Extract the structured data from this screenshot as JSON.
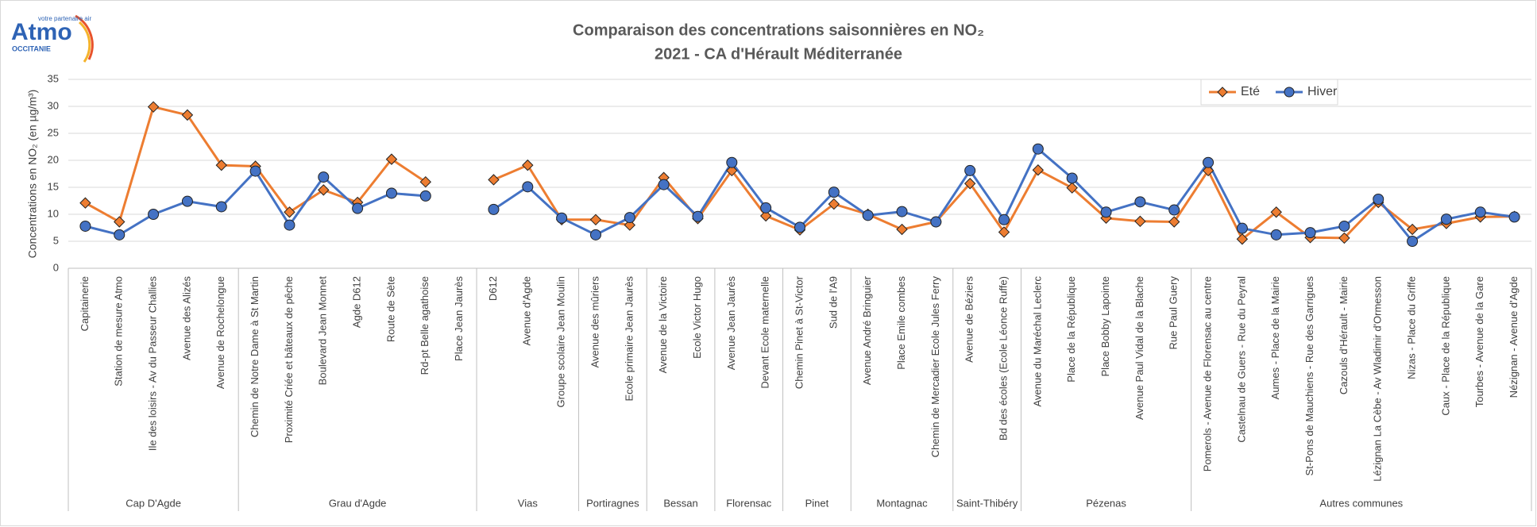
{
  "chart_data": {
    "type": "line",
    "title": "Comparaison des concentrations saisonnières en NO₂",
    "subtitle": "2021 - CA d'Hérault Méditerranée",
    "y_label": "Concentrations en NO₂ (en µg/m³)",
    "logo": {
      "name": "Atmo",
      "tagline": "votre partenaire air",
      "region": "OCCITANIE"
    },
    "groups": [
      {
        "name": "Cap D'Agde",
        "categories": [
          "Capitainerie",
          "Station de mesure Atmo",
          "Ile des loisirs - Av du Passeur Challies",
          "Avenue des Alizés",
          "Avenue de Rochelongue"
        ]
      },
      {
        "name": "Grau d'Agde",
        "categories": [
          "Chemin de Notre Dame à St Martin",
          "Proximité Criée et bâteaux de pêche",
          "Boulevard Jean Monnet",
          "Agde D612",
          "Route de Sète",
          "Rd-pt Belle agathoise",
          "Place Jean Jaurès"
        ]
      },
      {
        "name": "Vias",
        "categories": [
          "D612",
          "Avenue d'Agde",
          "Groupe scolaire Jean Moulin"
        ]
      },
      {
        "name": "Portiragnes",
        "categories": [
          "Avenue des mûriers",
          "Ecole primaire Jean Jaurès"
        ]
      },
      {
        "name": "Bessan",
        "categories": [
          "Avenue de la Victoire",
          "Ecole Victor Hugo"
        ]
      },
      {
        "name": "Florensac",
        "categories": [
          "Avenue Jean Jaurès",
          "Devant Ecole maternelle"
        ]
      },
      {
        "name": "Pinet",
        "categories": [
          "Chemin Pinet à St-Victor",
          "Sud de l'A9"
        ]
      },
      {
        "name": "Montagnac",
        "categories": [
          "Avenue André Bringuier",
          "Place Emile combes",
          "Chemin de Mercadier Ecole Jules Ferry"
        ]
      },
      {
        "name": "Saint-Thibéry",
        "categories": [
          "Avenue de Béziers",
          "Bd des écoles (Ecole Léonce Ruffe)"
        ]
      },
      {
        "name": "Pézenas",
        "categories": [
          "Avenue du Maréchal Leclerc",
          "Place de la République",
          "Place Bobby Lapointe",
          "Avenue Paul Vidal de la Blache",
          "Rue Paul Guery"
        ]
      },
      {
        "name": "Autres communes",
        "categories": [
          "Pomerols - Avenue de Florensac au centre",
          "Castelnau de Guers - Rue du Peyral",
          "Aumes - Place de la Mairie",
          "St-Pons de Mauchiens - Rue des Garrigues",
          "Cazouls d'Hérault - Mairie",
          "Lézignan La Cèbe - Av Wladimir d'Ormesson",
          "Nizas - Place du Griffe",
          "Caux - Place de la République",
          "Tourbes - Avenue de la Gare",
          "Nézignan - Avenue d'Agde"
        ]
      }
    ],
    "series": [
      {
        "name": "Eté",
        "color": "#ED7D31",
        "marker": "diamond",
        "values": [
          12.1,
          8.6,
          29.9,
          28.4,
          19.1,
          18.9,
          10.4,
          14.5,
          12.2,
          20.2,
          16.0,
          null,
          16.4,
          19.1,
          9.0,
          9.0,
          8.0,
          16.8,
          9.2,
          18.1,
          9.7,
          7.1,
          11.9,
          10.0,
          7.2,
          8.6,
          15.7,
          6.7,
          18.2,
          14.9,
          9.3,
          8.7,
          8.6,
          18.1,
          5.4,
          10.4,
          5.7,
          5.6,
          12.2,
          7.2,
          8.3,
          9.5,
          9.6
        ]
      },
      {
        "name": "Hiver",
        "color": "#4472C4",
        "marker": "circle",
        "values": [
          7.8,
          6.2,
          10.0,
          12.4,
          11.4,
          18.0,
          8.0,
          16.9,
          11.1,
          13.9,
          13.4,
          null,
          10.9,
          15.1,
          9.3,
          6.2,
          9.4,
          15.5,
          9.6,
          19.6,
          11.2,
          7.6,
          14.1,
          9.8,
          10.5,
          8.6,
          18.1,
          9.0,
          22.1,
          16.7,
          10.4,
          12.3,
          10.8,
          19.6,
          7.4,
          6.2,
          6.6,
          7.8,
          12.8,
          5.0,
          9.1,
          10.4,
          9.5
        ]
      }
    ],
    "ylim": [
      0,
      35
    ],
    "yticks": [
      0,
      5,
      10,
      15,
      20,
      25,
      30,
      35
    ],
    "grid": true,
    "legend": "top-right"
  }
}
